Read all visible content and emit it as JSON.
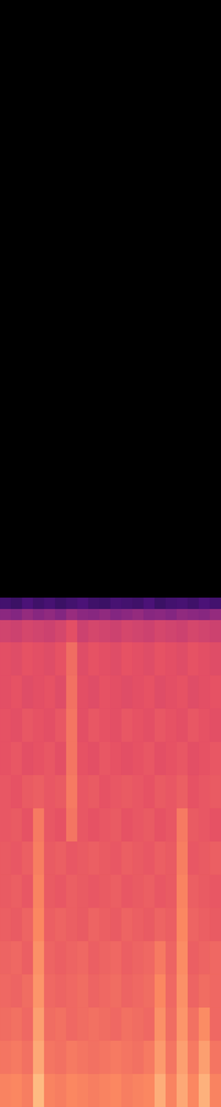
{
  "chart_data": {
    "type": "heatmap",
    "x_bins": [
      0,
      1,
      2,
      3,
      4,
      5,
      6,
      7,
      8,
      9,
      10,
      11,
      12,
      13,
      14,
      15,
      16,
      17,
      18,
      19,
      20
    ],
    "y_bins": [
      0,
      0.03,
      0.06,
      0.09,
      0.12,
      0.15,
      0.18,
      0.21,
      0.24,
      0.27,
      0.3,
      0.33,
      0.36,
      0.39,
      0.42,
      0.44,
      0.45,
      0.46
    ],
    "cells": [
      [
        0.74,
        0.75,
        0.73,
        0.86,
        0.74,
        0.73,
        0.75,
        0.74,
        0.73,
        0.74,
        0.75,
        0.73,
        0.74,
        0.75,
        0.83,
        0.74,
        0.82,
        0.75,
        0.84,
        0.74
      ],
      [
        0.71,
        0.72,
        0.7,
        0.82,
        0.71,
        0.7,
        0.72,
        0.71,
        0.7,
        0.71,
        0.72,
        0.71,
        0.7,
        0.72,
        0.79,
        0.71,
        0.8,
        0.72,
        0.8,
        0.71
      ],
      [
        0.69,
        0.7,
        0.68,
        0.8,
        0.69,
        0.7,
        0.68,
        0.69,
        0.7,
        0.69,
        0.68,
        0.7,
        0.69,
        0.68,
        0.77,
        0.69,
        0.78,
        0.7,
        0.76,
        0.68
      ],
      [
        0.68,
        0.67,
        0.69,
        0.78,
        0.68,
        0.67,
        0.68,
        0.69,
        0.67,
        0.68,
        0.69,
        0.67,
        0.68,
        0.69,
        0.75,
        0.68,
        0.77,
        0.67,
        0.69,
        0.68
      ],
      [
        0.67,
        0.68,
        0.66,
        0.77,
        0.67,
        0.66,
        0.67,
        0.68,
        0.66,
        0.67,
        0.68,
        0.66,
        0.67,
        0.68,
        0.72,
        0.67,
        0.76,
        0.66,
        0.67,
        0.68
      ],
      [
        0.66,
        0.65,
        0.67,
        0.75,
        0.66,
        0.67,
        0.66,
        0.65,
        0.67,
        0.66,
        0.65,
        0.67,
        0.66,
        0.65,
        0.67,
        0.66,
        0.75,
        0.67,
        0.66,
        0.65
      ],
      [
        0.65,
        0.66,
        0.64,
        0.74,
        0.65,
        0.64,
        0.66,
        0.65,
        0.64,
        0.65,
        0.66,
        0.64,
        0.65,
        0.66,
        0.64,
        0.65,
        0.74,
        0.66,
        0.65,
        0.64
      ],
      [
        0.65,
        0.64,
        0.66,
        0.73,
        0.65,
        0.66,
        0.64,
        0.65,
        0.66,
        0.65,
        0.64,
        0.66,
        0.65,
        0.64,
        0.66,
        0.65,
        0.73,
        0.64,
        0.65,
        0.66
      ],
      [
        0.64,
        0.65,
        0.63,
        0.72,
        0.64,
        0.63,
        0.71,
        0.64,
        0.63,
        0.64,
        0.65,
        0.63,
        0.64,
        0.65,
        0.63,
        0.64,
        0.72,
        0.65,
        0.64,
        0.63
      ],
      [
        0.64,
        0.63,
        0.65,
        0.66,
        0.64,
        0.65,
        0.72,
        0.64,
        0.65,
        0.63,
        0.64,
        0.65,
        0.64,
        0.63,
        0.65,
        0.64,
        0.66,
        0.63,
        0.64,
        0.65
      ],
      [
        0.63,
        0.64,
        0.62,
        0.63,
        0.64,
        0.62,
        0.71,
        0.63,
        0.62,
        0.64,
        0.63,
        0.62,
        0.63,
        0.64,
        0.62,
        0.63,
        0.64,
        0.62,
        0.63,
        0.64
      ],
      [
        0.63,
        0.62,
        0.64,
        0.63,
        0.62,
        0.64,
        0.71,
        0.62,
        0.64,
        0.63,
        0.62,
        0.64,
        0.63,
        0.62,
        0.64,
        0.63,
        0.62,
        0.64,
        0.63,
        0.62
      ],
      [
        0.62,
        0.63,
        0.61,
        0.62,
        0.63,
        0.61,
        0.7,
        0.62,
        0.61,
        0.63,
        0.62,
        0.61,
        0.62,
        0.63,
        0.61,
        0.62,
        0.63,
        0.61,
        0.62,
        0.63
      ],
      [
        0.62,
        0.61,
        0.63,
        0.62,
        0.61,
        0.63,
        0.69,
        0.61,
        0.63,
        0.62,
        0.61,
        0.63,
        0.62,
        0.61,
        0.63,
        0.62,
        0.61,
        0.63,
        0.62,
        0.61
      ],
      [
        0.57,
        0.56,
        0.58,
        0.57,
        0.56,
        0.58,
        0.62,
        0.56,
        0.58,
        0.57,
        0.56,
        0.58,
        0.57,
        0.56,
        0.58,
        0.57,
        0.56,
        0.58,
        0.57,
        0.56
      ],
      [
        0.4,
        0.38,
        0.42,
        0.39,
        0.41,
        0.38,
        0.43,
        0.4,
        0.39,
        0.41,
        0.38,
        0.4,
        0.42,
        0.39,
        0.4,
        0.38,
        0.41,
        0.4,
        0.39,
        0.42
      ],
      [
        0.22,
        0.2,
        0.24,
        0.21,
        0.23,
        0.2,
        0.22,
        0.24,
        0.21,
        0.2,
        0.23,
        0.22,
        0.21,
        0.24,
        0.2,
        0.22,
        0.23,
        0.21,
        0.24,
        0.22
      ]
    ],
    "xlim": [
      0,
      20
    ],
    "ylim": [
      0,
      1
    ],
    "color_range": [
      0,
      1
    ],
    "tick_labels": false
  }
}
